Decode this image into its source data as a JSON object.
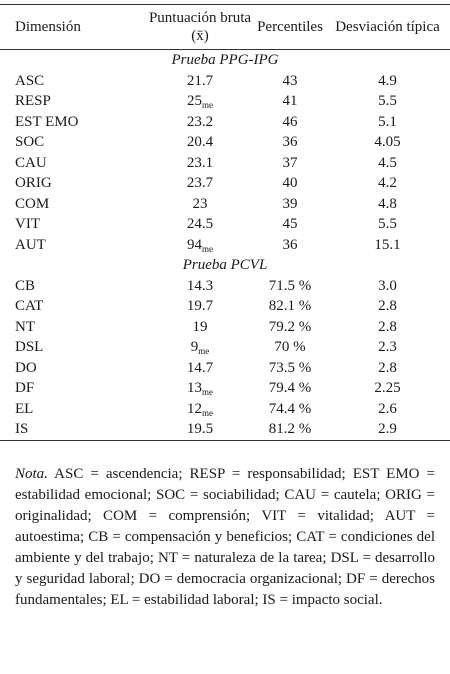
{
  "table": {
    "header": [
      "Dimensión",
      "Puntuación bruta (x̄)",
      "Percentiles",
      "Desviación típica"
    ],
    "sections": [
      {
        "title": "Prueba PPG-IPG",
        "rows": [
          {
            "dimension": "ASC",
            "score": "21.7",
            "percentile": "43",
            "sd": "4.9"
          },
          {
            "dimension": "RESP",
            "score": "25",
            "score_sub": "me",
            "percentile": "41",
            "sd": "5.5"
          },
          {
            "dimension": "EST EMO",
            "score": "23.2",
            "percentile": "46",
            "sd": "5.1"
          },
          {
            "dimension": "SOC",
            "score": "20.4",
            "percentile": "36",
            "sd": "4.05"
          },
          {
            "dimension": "CAU",
            "score": "23.1",
            "percentile": "37",
            "sd": "4.5"
          },
          {
            "dimension": "ORIG",
            "score": "23.7",
            "percentile": "40",
            "sd": "4.2"
          },
          {
            "dimension": "COM",
            "score": "23",
            "percentile": "39",
            "sd": "4.8"
          },
          {
            "dimension": "VIT",
            "score": "24.5",
            "percentile": "45",
            "sd": "5.5"
          },
          {
            "dimension": "AUT",
            "score": "94",
            "score_sub": "me",
            "percentile": "36",
            "sd": "15.1"
          }
        ]
      },
      {
        "title": "Prueba PCVL",
        "rows": [
          {
            "dimension": "CB",
            "score": "14.3",
            "percentile": "71.5 %",
            "sd": "3.0"
          },
          {
            "dimension": "CAT",
            "score": "19.7",
            "percentile": "82.1 %",
            "sd": "2.8"
          },
          {
            "dimension": "NT",
            "score": "19",
            "percentile": "79.2 %",
            "sd": "2.8"
          },
          {
            "dimension": "DSL",
            "score": "9",
            "score_sub": "me",
            "percentile": "70 %",
            "sd": "2.3"
          },
          {
            "dimension": "DO",
            "score": "14.7",
            "percentile": "73.5 %",
            "sd": "2.8"
          },
          {
            "dimension": "DF",
            "score": "13",
            "score_sub": "me",
            "percentile": "79.4 %",
            "sd": "2.25"
          },
          {
            "dimension": "EL",
            "score": "12",
            "score_sub": "me",
            "percentile": "74.4 %",
            "sd": "2.6"
          },
          {
            "dimension": "IS",
            "score": "19.5",
            "percentile": "81.2 %",
            "sd": "2.9"
          }
        ]
      }
    ]
  },
  "note": {
    "label": "Nota.",
    "text": "ASC = ascendencia; RESP = responsabilidad; EST EMO = estabilidad emocional; SOC = sociabilidad; CAU = cautela; ORIG = originalidad; COM = comprensión; VIT = vitalidad; AUT = autoestima; CB = compensación y beneficios; CAT = condiciones del ambiente y del trabajo; NT = naturaleza de la tarea; DSL = desarrollo y seguridad laboral; DO = democracia organizacional; DF = derechos fundamentales; EL = estabilidad laboral; IS = impacto social."
  }
}
